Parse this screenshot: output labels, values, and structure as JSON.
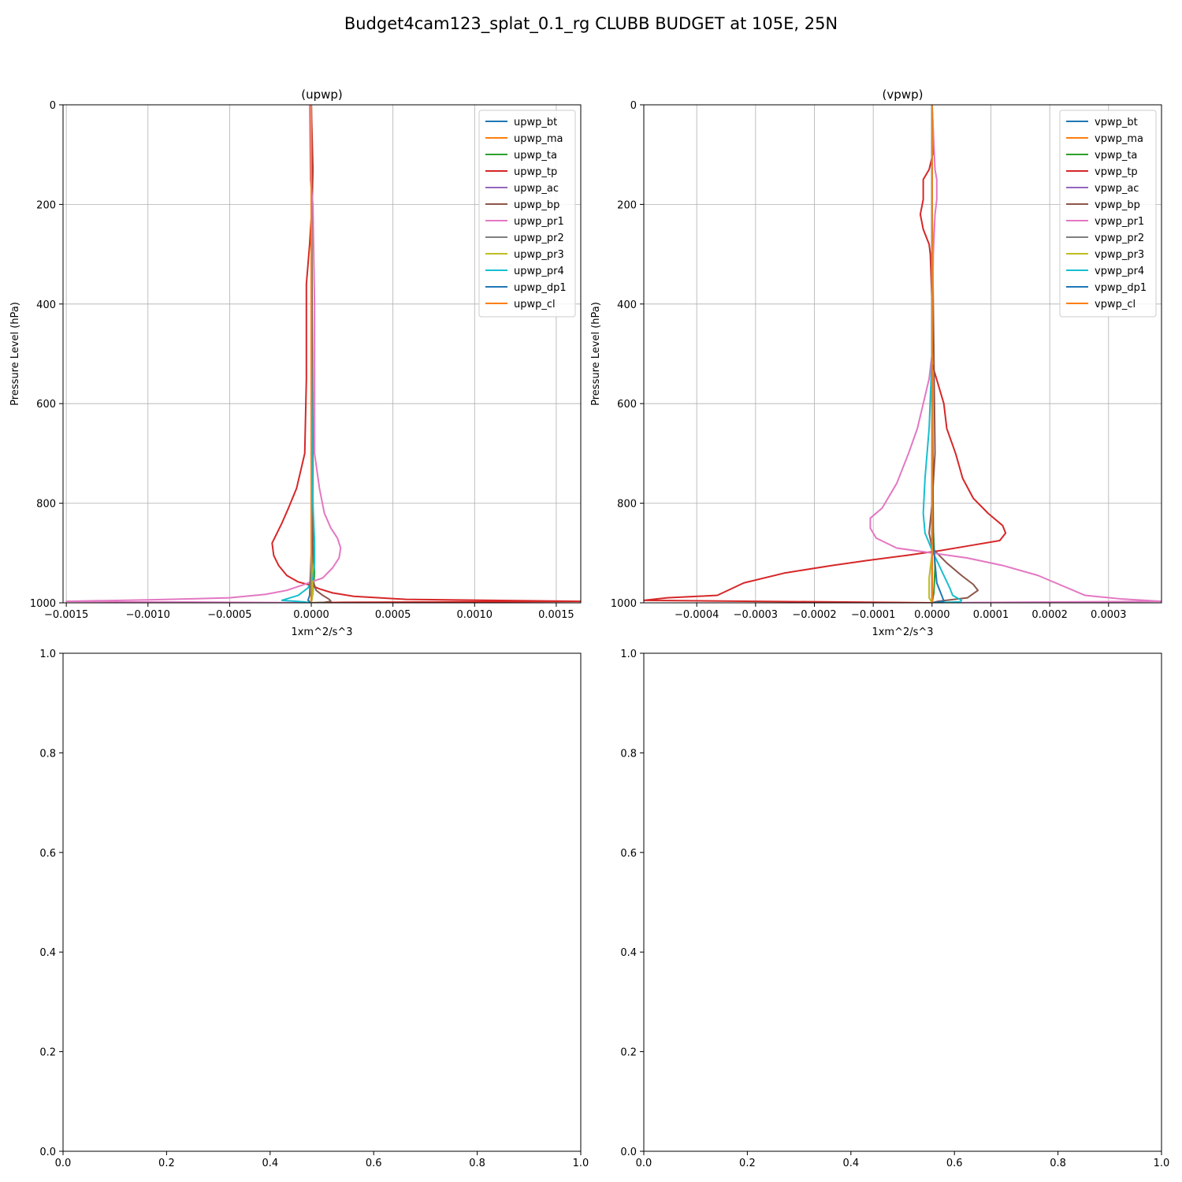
{
  "figure": {
    "title": "Budget4cam123_splat_0.1_rg CLUBB BUDGET at 105E, 25N"
  },
  "colors": {
    "palette": [
      "#1f77b4",
      "#ff7f0e",
      "#2ca02c",
      "#d62728",
      "#9467bd",
      "#8c564b",
      "#e377c2",
      "#7f7f7f",
      "#bcbd22",
      "#17becf",
      "#1f77b4",
      "#ff7f0e"
    ],
    "grid": "#b0b0b0",
    "axes": "#000000"
  },
  "chart_data": [
    {
      "type": "line",
      "title": "(upwp)",
      "xlabel": "1xm^2/s^3",
      "ylabel": "Pressure Level (hPa)",
      "xlim": [
        -0.00152,
        0.00165
      ],
      "ylim": [
        1000,
        0
      ],
      "xticks": [
        -0.0015,
        -0.001,
        -0.0005,
        0,
        0.0005,
        0.001,
        0.0015
      ],
      "xtick_labels": [
        "−0.0015",
        "−0.0010",
        "−0.0005",
        "0.0000",
        "0.0005",
        "0.0010",
        "0.0015"
      ],
      "yticks": [
        0,
        200,
        400,
        600,
        800,
        1000
      ],
      "ytick_labels": [
        "0",
        "200",
        "400",
        "600",
        "800",
        "1000"
      ],
      "grid": true,
      "legend": "top-right",
      "series": [
        {
          "name": "upwp_bt",
          "x": [
            0,
            0,
            0,
            0
          ],
          "y": [
            0,
            500,
            950,
            1000
          ]
        },
        {
          "name": "upwp_ma",
          "x": [
            0,
            0,
            0,
            0
          ],
          "y": [
            0,
            500,
            950,
            1000
          ]
        },
        {
          "name": "upwp_ta",
          "x": [
            0,
            0,
            1e-05,
            2e-05,
            1e-05,
            0
          ],
          "y": [
            0,
            600,
            880,
            940,
            980,
            1000
          ]
        },
        {
          "name": "upwp_tp",
          "x": [
            0,
            1e-05,
            5e-06,
            -1e-05,
            -3e-05,
            -3e-05,
            -4e-05,
            -9e-05,
            -0.00014,
            -0.00018,
            -0.00021,
            -0.00024,
            -0.00023,
            -0.0002,
            -0.00015,
            -8e-05,
            0,
            5e-05,
            0.00013,
            0.00026,
            0.00058,
            0.00165,
            0.0002,
            0
          ],
          "y": [
            0,
            130,
            200,
            280,
            360,
            550,
            700,
            770,
            810,
            840,
            860,
            880,
            905,
            925,
            945,
            958,
            965,
            972,
            980,
            987,
            993,
            997,
            999,
            1000
          ]
        },
        {
          "name": "upwp_ac",
          "x": [
            0,
            0,
            0,
            0
          ],
          "y": [
            0,
            500,
            950,
            1000
          ]
        },
        {
          "name": "upwp_bp",
          "x": [
            0,
            5e-06,
            1e-05,
            1e-05,
            5e-06,
            3e-05,
            7e-05,
            0.00011,
            0.00012,
            8e-05,
            0
          ],
          "y": [
            0,
            400,
            700,
            850,
            950,
            975,
            985,
            993,
            997,
            999,
            1000
          ]
        },
        {
          "name": "upwp_pr1",
          "x": [
            -1e-05,
            -5e-06,
            1e-05,
            2e-05,
            2e-05,
            5e-05,
            8e-05,
            0.00012,
            0.00016,
            0.00018,
            0.00017,
            0.00013,
            7e-05,
            0,
            -6e-05,
            -0.00015,
            -0.00028,
            -0.0005,
            -0.001,
            -0.0015,
            -0.0005,
            0
          ],
          "y": [
            0,
            150,
            200,
            400,
            700,
            770,
            820,
            850,
            870,
            890,
            910,
            930,
            950,
            958,
            965,
            975,
            983,
            990,
            994,
            997,
            999,
            1000
          ]
        },
        {
          "name": "upwp_pr2",
          "x": [
            0,
            0,
            0
          ],
          "y": [
            0,
            500,
            1000
          ]
        },
        {
          "name": "upwp_pr3",
          "x": [
            0,
            0,
            0,
            1e-05,
            0
          ],
          "y": [
            0,
            700,
            900,
            980,
            1000
          ]
        },
        {
          "name": "upwp_pr4",
          "x": [
            0,
            0,
            1e-05,
            2e-05,
            2e-05,
            1e-05,
            -2e-05,
            -8e-05,
            -0.00014,
            -0.00018,
            -5e-05,
            0
          ],
          "y": [
            0,
            500,
            800,
            880,
            920,
            950,
            970,
            985,
            991,
            995,
            998,
            1000
          ]
        },
        {
          "name": "upwp_dp1",
          "x": [
            0,
            0,
            -1e-05,
            -2e-05,
            0
          ],
          "y": [
            0,
            900,
            985,
            995,
            1000
          ]
        },
        {
          "name": "upwp_cl",
          "x": [
            0,
            0,
            0
          ],
          "y": [
            0,
            500,
            1000
          ]
        }
      ]
    },
    {
      "type": "line",
      "title": "(vpwp)",
      "xlabel": "1xm^2/s^3",
      "ylabel": "Pressure Level (hPa)",
      "xlim": [
        -0.00049,
        0.00039
      ],
      "ylim": [
        1000,
        0
      ],
      "xticks": [
        -0.0004,
        -0.0003,
        -0.0002,
        -0.0001,
        0,
        0.0001,
        0.0002,
        0.0003
      ],
      "xtick_labels": [
        "−0.0004",
        "−0.0003",
        "−0.0002",
        "−0.0001",
        "0.0000",
        "0.0001",
        "0.0002",
        "0.0003"
      ],
      "yticks": [
        0,
        200,
        400,
        600,
        800,
        1000
      ],
      "ytick_labels": [
        "0",
        "200",
        "400",
        "600",
        "800",
        "1000"
      ],
      "grid": true,
      "legend": "top-right",
      "series": [
        {
          "name": "vpwp_bt",
          "x": [
            0,
            0,
            0,
            0
          ],
          "y": [
            0,
            500,
            950,
            1000
          ]
        },
        {
          "name": "vpwp_ma",
          "x": [
            0,
            0,
            0,
            0
          ],
          "y": [
            0,
            500,
            950,
            1000
          ]
        },
        {
          "name": "vpwp_ta",
          "x": [
            0,
            0,
            2e-06,
            5e-06,
            3e-06,
            0
          ],
          "y": [
            0,
            500,
            850,
            930,
            980,
            1000
          ]
        },
        {
          "name": "vpwp_tp",
          "x": [
            0,
            3e-06,
            -5e-06,
            -1.5e-05,
            -1.5e-05,
            -2e-05,
            -1.5e-05,
            -5e-06,
            -3e-06,
            0,
            0,
            1e-05,
            2e-05,
            2.5e-05,
            4e-05,
            5.2e-05,
            7e-05,
            9.5e-05,
            0.00012,
            0.000125,
            0.000115,
            6.5e-05,
            1.5e-05,
            -4.5e-05,
            -0.00011,
            -0.00017,
            -0.00025,
            -0.00032,
            -0.000365,
            -0.00045,
            -0.00049,
            0
          ],
          "y": [
            0,
            90,
            130,
            150,
            190,
            220,
            250,
            280,
            300,
            400,
            520,
            560,
            600,
            650,
            700,
            750,
            790,
            820,
            845,
            860,
            875,
            885,
            895,
            905,
            915,
            925,
            940,
            960,
            985,
            990,
            995,
            1000
          ]
        },
        {
          "name": "vpwp_ac",
          "x": [
            0,
            0,
            0,
            0
          ],
          "y": [
            0,
            500,
            950,
            1000
          ]
        },
        {
          "name": "vpwp_bp",
          "x": [
            0,
            0,
            5e-06,
            0,
            -5e-06,
            0,
            2.5e-05,
            5e-05,
            7e-05,
            7.8e-05,
            6e-05,
            1e-05,
            0
          ],
          "y": [
            0,
            200,
            700,
            800,
            860,
            890,
            920,
            945,
            963,
            975,
            990,
            997,
            1000
          ]
        },
        {
          "name": "vpwp_pr1",
          "x": [
            0,
            5e-06,
            8e-06,
            8e-06,
            5e-06,
            2e-06,
            0,
            -5e-06,
            -1.5e-05,
            -2.5e-05,
            -4e-05,
            -6e-05,
            -8.5e-05,
            -0.000105,
            -0.000105,
            -9.5e-05,
            -6e-05,
            0,
            6e-05,
            0.00012,
            0.00018,
            0.00022,
            0.00026,
            0.00032,
            0.00039,
            0
          ],
          "y": [
            0,
            130,
            150,
            190,
            220,
            300,
            500,
            550,
            600,
            650,
            700,
            760,
            810,
            830,
            850,
            870,
            890,
            900,
            910,
            925,
            945,
            965,
            985,
            992,
            997,
            1000
          ]
        },
        {
          "name": "vpwp_pr2",
          "x": [
            0,
            0,
            0
          ],
          "y": [
            0,
            500,
            1000
          ]
        },
        {
          "name": "vpwp_pr3",
          "x": [
            0,
            0,
            2e-06,
            -5e-06,
            -5e-06,
            0
          ],
          "y": [
            0,
            700,
            880,
            950,
            990,
            1000
          ]
        },
        {
          "name": "vpwp_pr4",
          "x": [
            0,
            0,
            -5e-06,
            -1.2e-05,
            -1.5e-05,
            -1.2e-05,
            -5e-06,
            0,
            1e-05,
            2e-05,
            3e-05,
            3.5e-05,
            5e-05,
            4.8e-05,
            0
          ],
          "y": [
            0,
            500,
            650,
            750,
            820,
            860,
            880,
            895,
            920,
            945,
            970,
            985,
            995,
            998,
            1000
          ]
        },
        {
          "name": "vpwp_dp1",
          "x": [
            0,
            0,
            2e-06,
            8e-06,
            1.8e-05,
            2e-05,
            0
          ],
          "y": [
            0,
            500,
            880,
            960,
            990,
            997,
            1000
          ]
        },
        {
          "name": "vpwp_cl",
          "x": [
            0,
            0,
            0
          ],
          "y": [
            0,
            500,
            1000
          ]
        }
      ]
    },
    {
      "type": "line",
      "title": "",
      "xlim": [
        0,
        1
      ],
      "ylim": [
        0,
        1
      ],
      "xticks": [
        0,
        0.2,
        0.4,
        0.6,
        0.8,
        1
      ],
      "xtick_labels": [
        "0.0",
        "0.2",
        "0.4",
        "0.6",
        "0.8",
        "1.0"
      ],
      "yticks": [
        0,
        0.2,
        0.4,
        0.6,
        0.8,
        1
      ],
      "ytick_labels": [
        "0.0",
        "0.2",
        "0.4",
        "0.6",
        "0.8",
        "1.0"
      ],
      "grid": false,
      "series": []
    },
    {
      "type": "line",
      "title": "",
      "xlim": [
        0,
        1
      ],
      "ylim": [
        0,
        1
      ],
      "xticks": [
        0,
        0.2,
        0.4,
        0.6,
        0.8,
        1
      ],
      "xtick_labels": [
        "0.0",
        "0.2",
        "0.4",
        "0.6",
        "0.8",
        "1.0"
      ],
      "yticks": [
        0,
        0.2,
        0.4,
        0.6,
        0.8,
        1
      ],
      "ytick_labels": [
        "0.0",
        "0.2",
        "0.4",
        "0.6",
        "0.8",
        "1.0"
      ],
      "grid": false,
      "series": []
    }
  ]
}
